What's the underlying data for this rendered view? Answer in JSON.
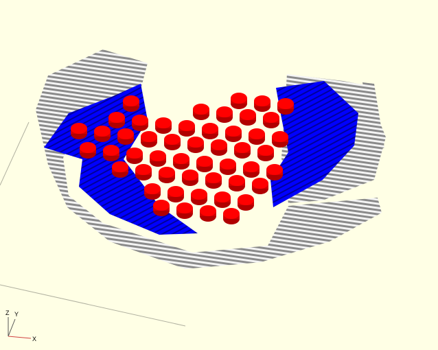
{
  "axes": {
    "z": "Z",
    "y": "Y",
    "x": "X"
  }
}
